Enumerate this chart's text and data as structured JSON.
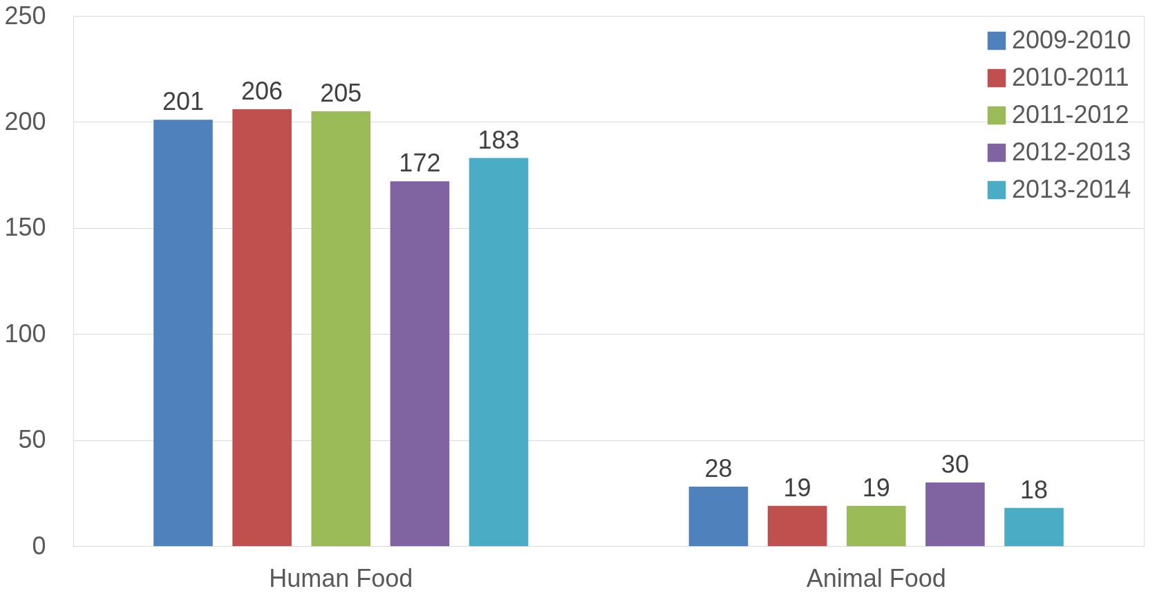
{
  "chart_data": {
    "type": "bar",
    "categories": [
      "Human Food",
      "Animal Food"
    ],
    "series": [
      {
        "name": "2009-2010",
        "color": "#4f81bd",
        "values": [
          201,
          28
        ]
      },
      {
        "name": "2010-2011",
        "color": "#c0504d",
        "values": [
          206,
          19
        ]
      },
      {
        "name": "2011-2012",
        "color": "#9bbb59",
        "values": [
          205,
          19
        ]
      },
      {
        "name": "2012-2013",
        "color": "#8064a2",
        "values": [
          172,
          30
        ]
      },
      {
        "name": "2013-2014",
        "color": "#4bacc6",
        "values": [
          183,
          18
        ]
      }
    ],
    "ylim": [
      0,
      250
    ],
    "yticks": [
      0,
      50,
      100,
      150,
      200,
      250
    ],
    "grid": "y",
    "legend": "top right",
    "data_labels": true
  }
}
